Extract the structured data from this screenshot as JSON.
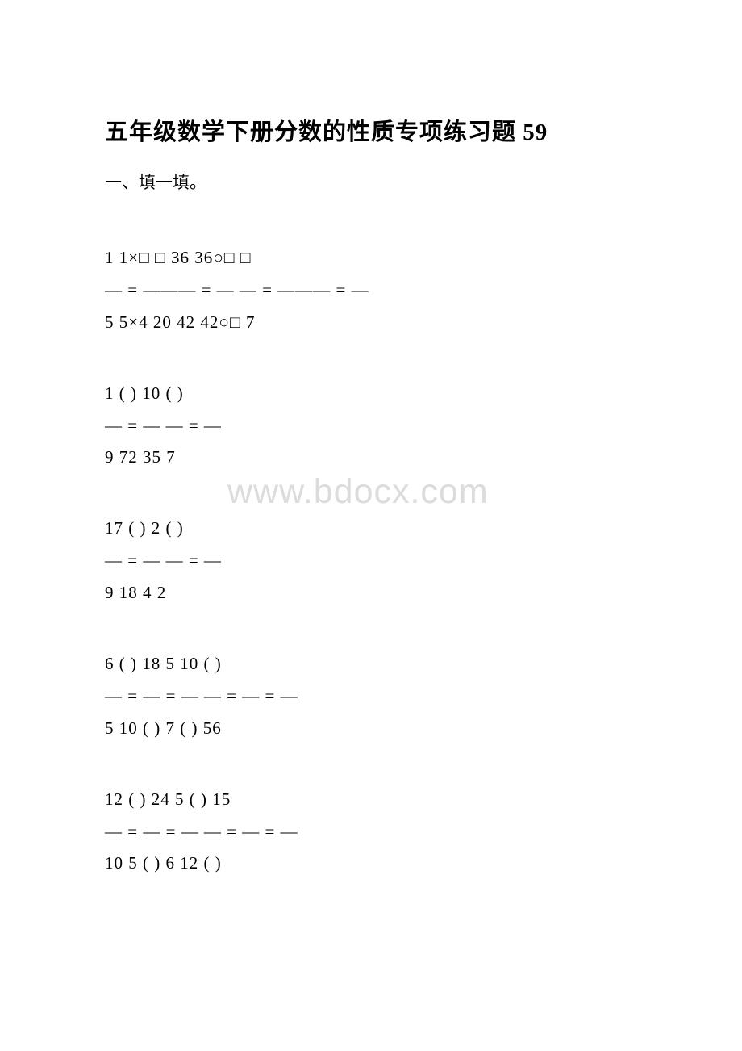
{
  "title": "五年级数学下册分数的性质专项练习题 59",
  "section_header": "一、填一填。",
  "watermark": "www.bdocx.com",
  "exercises": {
    "ex1": {
      "line1": "1  1×□   □   36  36○□  □",
      "line2": "— = ——— = —   — = ——— = —",
      "line3": "5  5×4   20   42  42○□  7"
    },
    "ex2": {
      "line1": "1  ( )      10  ( )",
      "line2": "— = —     — = —",
      "line3": "9  72      35  7"
    },
    "ex3": {
      "line1": "17  ( )     2  ( )",
      "line2": "— = —     — = —",
      "line3": "9  18      4  2"
    },
    "ex4": {
      "line1": "6  ( )  18    5  10  ( )",
      "line2": "— = — = —   — = — = —",
      "line3": "5  10  ( )    7  ( )  56"
    },
    "ex5": {
      "line1": "12  ( )  24    5  ( )  15",
      "line2": "— = — = —   — = — = —",
      "line3": "10  5  ( )    6  12  ( )"
    }
  },
  "colors": {
    "background": "#ffffff",
    "text": "#000000",
    "watermark": "#dcdcdc"
  },
  "typography": {
    "title_fontsize": 29,
    "body_fontsize": 21,
    "watermark_fontsize": 43
  }
}
